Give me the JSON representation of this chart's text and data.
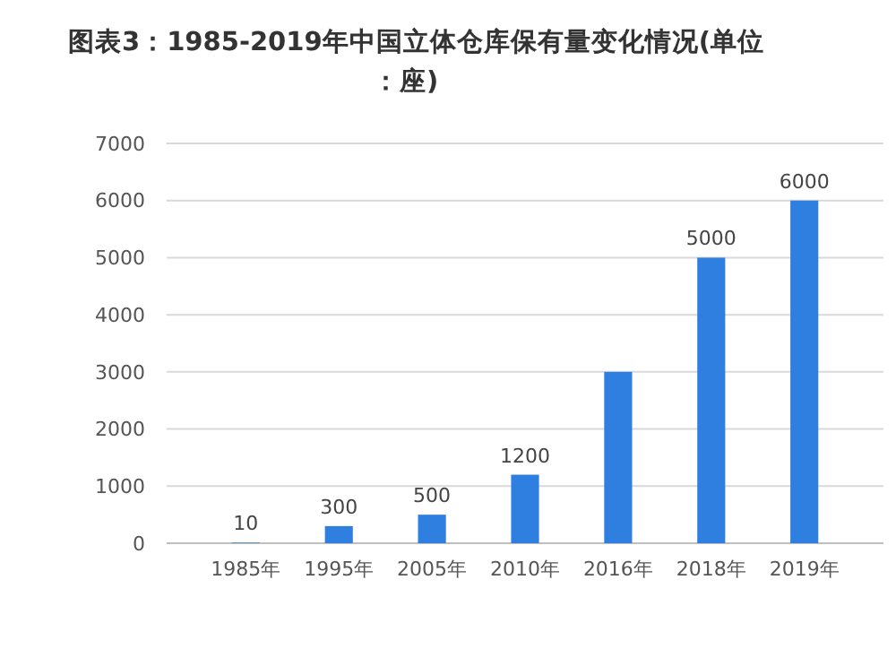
{
  "chart_data": {
    "type": "bar",
    "title": "图表3：1985-2019年中国立体仓库保有量变化情况(单位：座)",
    "categories": [
      "1985年",
      "1995年",
      "2005年",
      "2010年",
      "2016年",
      "2018年",
      "2019年"
    ],
    "values": [
      10,
      300,
      500,
      1200,
      3000,
      5000,
      6000
    ],
    "value_labels": [
      "10",
      "300",
      "500",
      "1200",
      null,
      "5000",
      "6000"
    ],
    "color": "#2f7fe0",
    "ylim": [
      0,
      7000
    ],
    "yticks": [
      0,
      1000,
      2000,
      3000,
      4000,
      5000,
      6000,
      7000
    ],
    "grid": "y"
  }
}
